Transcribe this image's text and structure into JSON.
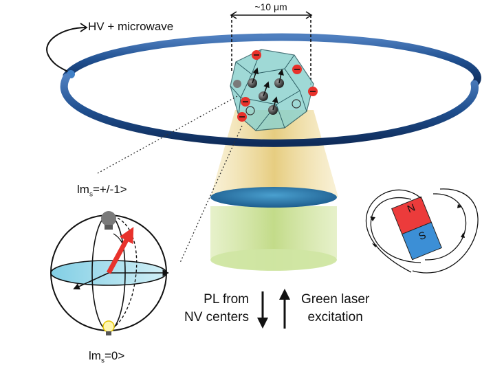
{
  "labels": {
    "hv_microwave": "HV + microwave",
    "scale": "~10 μm",
    "state_top_prefix": "lm",
    "state_top_sub": "s",
    "state_top_suffix": "=+/-1>",
    "state_bottom_prefix": "lm",
    "state_bottom_sub": "s",
    "state_bottom_suffix": "=0>",
    "pl_line1": "PL from",
    "pl_line2": "NV centers",
    "green_line1": "Green laser",
    "green_line2": "excitation",
    "magnet_north": "N",
    "magnet_south": "S"
  },
  "colors": {
    "ring": "#1f4f8f",
    "crystal": "#8fd3cf",
    "beam": "#e9d28a",
    "objective": "#cfe6a3",
    "disc": "#2c6fa0",
    "electron": "#e8322c",
    "arrow": "#e8322c",
    "magnet_north": "#ec3b3b",
    "magnet_south": "#3c8fd6"
  },
  "icons": {
    "bulb_off": "lightbulb-off-icon",
    "bulb_on": "lightbulb-on-icon"
  }
}
